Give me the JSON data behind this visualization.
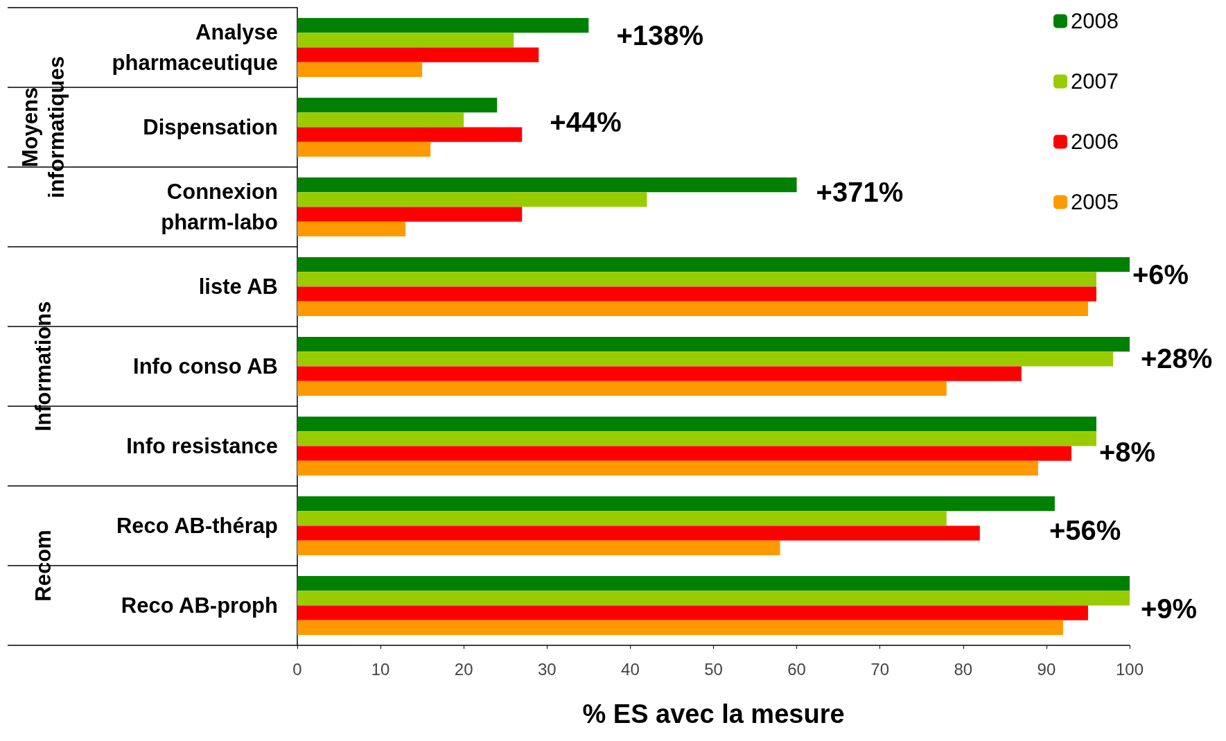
{
  "chart_data": {
    "type": "bar",
    "orientation": "horizontal",
    "xlabel": "% ES avec la mesure",
    "categories": [
      "Analyse\npharmaceutique",
      "Dispensation",
      "Connexion\npharm-labo",
      "liste AB",
      "Info conso AB",
      "Info resistance",
      "Reco AB-thérap",
      "Reco AB-proph"
    ],
    "series": [
      {
        "name": "2008",
        "color": "#008000",
        "values": [
          35,
          24,
          60,
          100,
          100,
          96,
          91,
          100
        ]
      },
      {
        "name": "2007",
        "color": "#99cc00",
        "values": [
          26,
          20,
          42,
          96,
          98,
          96,
          78,
          100
        ]
      },
      {
        "name": "2006",
        "color": "#ff0000",
        "values": [
          29,
          27,
          27,
          96,
          87,
          93,
          82,
          95
        ]
      },
      {
        "name": "2005",
        "color": "#ff9900",
        "values": [
          15,
          16,
          13,
          95,
          78,
          89,
          58,
          92
        ]
      }
    ],
    "xlim": [
      0,
      100
    ],
    "xticks": [
      0,
      10,
      20,
      30,
      40,
      50,
      60,
      70,
      80,
      90,
      100
    ],
    "grid": false,
    "legend": "top right",
    "annotations": [
      "+138%",
      "+44%",
      "+371%",
      "+6%",
      "+28%",
      "+8%",
      "+56%",
      "+9%",
      "Moyens\ninformatiques",
      "Informations",
      "Recom"
    ]
  }
}
